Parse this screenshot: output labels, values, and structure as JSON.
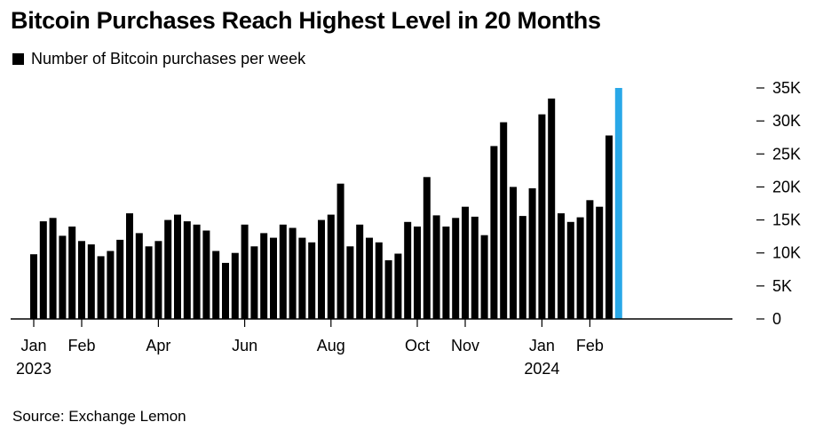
{
  "title": "Bitcoin Purchases Reach Highest Level in 20 Months",
  "legend_label": "Number of Bitcoin purchases per week",
  "source": "Source: Exchange Lemon",
  "colors": {
    "bar": "#000000",
    "highlight": "#29a8e8",
    "axis": "#000000"
  },
  "chart_data": {
    "type": "bar",
    "series": [
      {
        "name": "Number of Bitcoin purchases per week",
        "values": [
          9800,
          14800,
          15300,
          12600,
          14000,
          11800,
          11300,
          9500,
          10300,
          12000,
          16000,
          13000,
          11000,
          11800,
          15000,
          15800,
          14800,
          14300,
          13400,
          10300,
          8500,
          10000,
          14300,
          11000,
          13000,
          12300,
          14300,
          13800,
          12300,
          11600,
          15000,
          15800,
          20500,
          11000,
          14300,
          12300,
          11600,
          8900,
          9900,
          14700,
          14000,
          21500,
          15700,
          14000,
          15300,
          17000,
          15500,
          12700,
          26200,
          29800,
          20000,
          15600,
          19800,
          31000,
          33400,
          16000,
          14700,
          15400,
          18000,
          17000,
          27800,
          35000
        ]
      }
    ],
    "highlight_index": 61,
    "y_ticks": [
      {
        "value": 0,
        "label": "0"
      },
      {
        "value": 5000,
        "label": "5K"
      },
      {
        "value": 10000,
        "label": "10K"
      },
      {
        "value": 15000,
        "label": "15K"
      },
      {
        "value": 20000,
        "label": "20K"
      },
      {
        "value": 25000,
        "label": "25K"
      },
      {
        "value": 30000,
        "label": "30K"
      },
      {
        "value": 35000,
        "label": "35K"
      }
    ],
    "ylim": [
      0,
      35000
    ],
    "x_ticks": [
      {
        "index": 0,
        "label": "Jan"
      },
      {
        "index": 5,
        "label": "Feb"
      },
      {
        "index": 13,
        "label": "Apr"
      },
      {
        "index": 22,
        "label": "Jun"
      },
      {
        "index": 31,
        "label": "Aug"
      },
      {
        "index": 40,
        "label": "Oct"
      },
      {
        "index": 45,
        "label": "Nov"
      },
      {
        "index": 53,
        "label": "Jan"
      },
      {
        "index": 58,
        "label": "Feb"
      }
    ],
    "year_labels": [
      {
        "index": 0,
        "label": "2023"
      },
      {
        "index": 53,
        "label": "2024"
      }
    ],
    "grid": false,
    "y_axis_side": "right",
    "legend_position": "top-left"
  }
}
